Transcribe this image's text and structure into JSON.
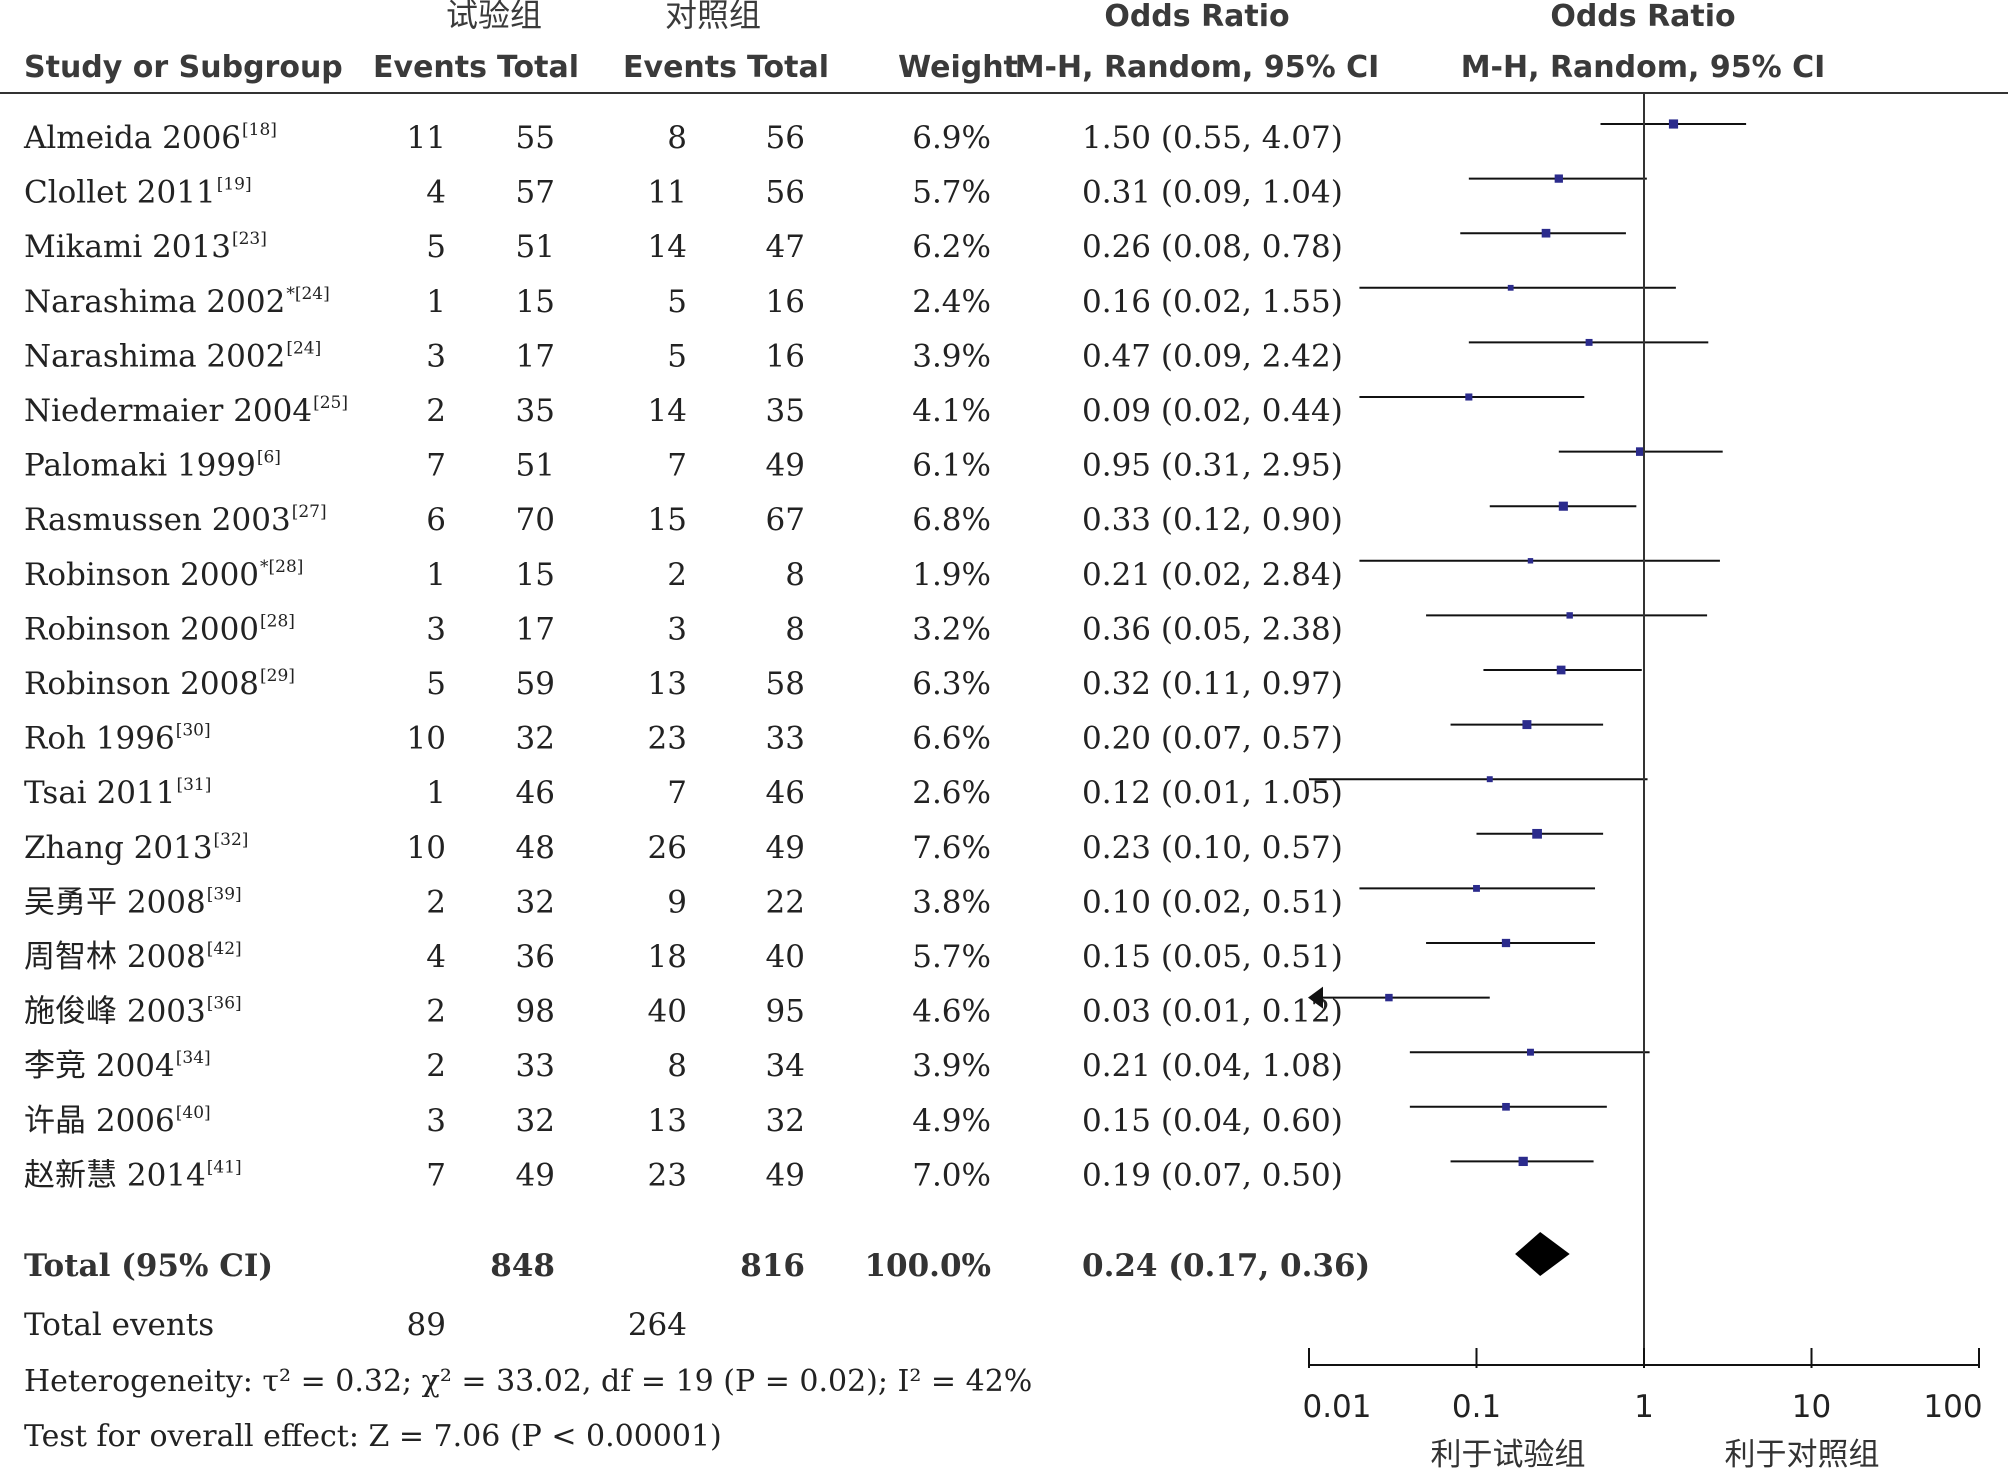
{
  "header": {
    "group_exp": "试验组",
    "group_ctrl": "对照组",
    "or_title_left": "Odds Ratio",
    "or_title_right": "Odds Ratio",
    "col_study": "Study or Subgroup",
    "col_events_exp": "Events",
    "col_total_exp": "Total",
    "col_events_ctrl": "Events",
    "col_total_ctrl": "Total",
    "col_weight": "Weight",
    "col_method_left": "M-H, Random, 95% CI",
    "col_method_right": "M-H, Random, 95% CI"
  },
  "chart_data": {
    "type": "forest",
    "x_scale": "log",
    "xlim": [
      0.01,
      100
    ],
    "ticks": [
      "0.01",
      "0.1",
      "1",
      "10",
      "100"
    ],
    "tick_values": [
      0.01,
      0.1,
      1,
      10,
      100
    ],
    "favours_left": "利于试验组",
    "favours_right": "利于对照组",
    "square_color": "#2b2b8c",
    "studies": [
      {
        "name": "Almeida 2006",
        "ref": "[18]",
        "e1": "11",
        "t1": "55",
        "e2": "8",
        "t2": "56",
        "weight": "6.9%",
        "ci": "1.50 (0.55, 4.07)",
        "or": 1.5,
        "lo": 0.55,
        "hi": 4.07
      },
      {
        "name": "Clollet 2011",
        "ref": "[19]",
        "e1": "4",
        "t1": "57",
        "e2": "11",
        "t2": "56",
        "weight": "5.7%",
        "ci": "0.31 (0.09, 1.04)",
        "or": 0.31,
        "lo": 0.09,
        "hi": 1.04
      },
      {
        "name": "Mikami 2013",
        "ref": "[23]",
        "e1": "5",
        "t1": "51",
        "e2": "14",
        "t2": "47",
        "weight": "6.2%",
        "ci": "0.26 (0.08, 0.78)",
        "or": 0.26,
        "lo": 0.08,
        "hi": 0.78
      },
      {
        "name": "Narashima 2002",
        "ref": "*[24]",
        "e1": "1",
        "t1": "15",
        "e2": "5",
        "t2": "16",
        "weight": "2.4%",
        "ci": "0.16 (0.02, 1.55)",
        "or": 0.16,
        "lo": 0.02,
        "hi": 1.55
      },
      {
        "name": "Narashima 2002",
        "ref": "[24]",
        "e1": "3",
        "t1": "17",
        "e2": "5",
        "t2": "16",
        "weight": "3.9%",
        "ci": "0.47 (0.09, 2.42)",
        "or": 0.47,
        "lo": 0.09,
        "hi": 2.42
      },
      {
        "name": "Niedermaier 2004",
        "ref": "[25]",
        "e1": "2",
        "t1": "35",
        "e2": "14",
        "t2": "35",
        "weight": "4.1%",
        "ci": "0.09 (0.02, 0.44)",
        "or": 0.09,
        "lo": 0.02,
        "hi": 0.44
      },
      {
        "name": "Palomaki 1999",
        "ref": "[6]",
        "e1": "7",
        "t1": "51",
        "e2": "7",
        "t2": "49",
        "weight": "6.1%",
        "ci": "0.95 (0.31, 2.95)",
        "or": 0.95,
        "lo": 0.31,
        "hi": 2.95
      },
      {
        "name": "Rasmussen 2003",
        "ref": "[27]",
        "e1": "6",
        "t1": "70",
        "e2": "15",
        "t2": "67",
        "weight": "6.8%",
        "ci": "0.33 (0.12, 0.90)",
        "or": 0.33,
        "lo": 0.12,
        "hi": 0.9
      },
      {
        "name": "Robinson 2000",
        "ref": "*[28]",
        "e1": "1",
        "t1": "15",
        "e2": "2",
        "t2": "8",
        "weight": "1.9%",
        "ci": "0.21 (0.02, 2.84)",
        "or": 0.21,
        "lo": 0.02,
        "hi": 2.84
      },
      {
        "name": "Robinson 2000",
        "ref": "[28]",
        "e1": "3",
        "t1": "17",
        "e2": "3",
        "t2": "8",
        "weight": "3.2%",
        "ci": "0.36 (0.05, 2.38)",
        "or": 0.36,
        "lo": 0.05,
        "hi": 2.38
      },
      {
        "name": "Robinson 2008",
        "ref": "[29]",
        "e1": "5",
        "t1": "59",
        "e2": "13",
        "t2": "58",
        "weight": "6.3%",
        "ci": "0.32 (0.11, 0.97)",
        "or": 0.32,
        "lo": 0.11,
        "hi": 0.97
      },
      {
        "name": "Roh 1996",
        "ref": "[30]",
        "e1": "10",
        "t1": "32",
        "e2": "23",
        "t2": "33",
        "weight": "6.6%",
        "ci": "0.20 (0.07, 0.57)",
        "or": 0.2,
        "lo": 0.07,
        "hi": 0.57
      },
      {
        "name": "Tsai 2011",
        "ref": "[31]",
        "e1": "1",
        "t1": "46",
        "e2": "7",
        "t2": "46",
        "weight": "2.6%",
        "ci": "0.12 (0.01, 1.05)",
        "or": 0.12,
        "lo": 0.01,
        "hi": 1.05
      },
      {
        "name": "Zhang 2013",
        "ref": "[32]",
        "e1": "10",
        "t1": "48",
        "e2": "26",
        "t2": "49",
        "weight": "7.6%",
        "ci": "0.23 (0.10, 0.57)",
        "or": 0.23,
        "lo": 0.1,
        "hi": 0.57
      },
      {
        "name": "吴勇平 2008",
        "ref": "[39]",
        "e1": "2",
        "t1": "32",
        "e2": "9",
        "t2": "22",
        "weight": "3.8%",
        "ci": "0.10 (0.02, 0.51)",
        "or": 0.1,
        "lo": 0.02,
        "hi": 0.51
      },
      {
        "name": "周智林 2008",
        "ref": "[42]",
        "e1": "4",
        "t1": "36",
        "e2": "18",
        "t2": "40",
        "weight": "5.7%",
        "ci": "0.15 (0.05, 0.51)",
        "or": 0.15,
        "lo": 0.05,
        "hi": 0.51
      },
      {
        "name": "施俊峰 2003",
        "ref": "[36]",
        "e1": "2",
        "t1": "98",
        "e2": "40",
        "t2": "95",
        "weight": "4.6%",
        "ci": "0.03 (0.01, 0.12)",
        "or": 0.03,
        "lo": 0.01,
        "hi": 0.12,
        "arrow_left": true
      },
      {
        "name": "李竞 2004",
        "ref": "[34]",
        "e1": "2",
        "t1": "33",
        "e2": "8",
        "t2": "34",
        "weight": "3.9%",
        "ci": "0.21 (0.04, 1.08)",
        "or": 0.21,
        "lo": 0.04,
        "hi": 1.08
      },
      {
        "name": "许晶 2006",
        "ref": "[40]",
        "e1": "3",
        "t1": "32",
        "e2": "13",
        "t2": "32",
        "weight": "4.9%",
        "ci": "0.15 (0.04, 0.60)",
        "or": 0.15,
        "lo": 0.04,
        "hi": 0.6
      },
      {
        "name": "赵新慧 2014",
        "ref": "[41]",
        "e1": "7",
        "t1": "49",
        "e2": "23",
        "t2": "49",
        "weight": "7.0%",
        "ci": "0.19 (0.07, 0.50)",
        "or": 0.19,
        "lo": 0.07,
        "hi": 0.5
      }
    ],
    "total": {
      "label": "Total (95% CI)",
      "t1": "848",
      "t2": "816",
      "weight": "100.0%",
      "ci": "0.24 (0.17, 0.36)",
      "or": 0.24,
      "lo": 0.17,
      "hi": 0.36
    },
    "total_events": {
      "label": "Total events",
      "e1": "89",
      "e2": "264"
    },
    "heterogeneity": "Heterogeneity: τ² = 0.32; χ² = 33.02, df = 19 (P = 0.02); I² = 42%",
    "overall_effect": "Test for overall effect: Z = 7.06 (P < 0.00001)"
  }
}
